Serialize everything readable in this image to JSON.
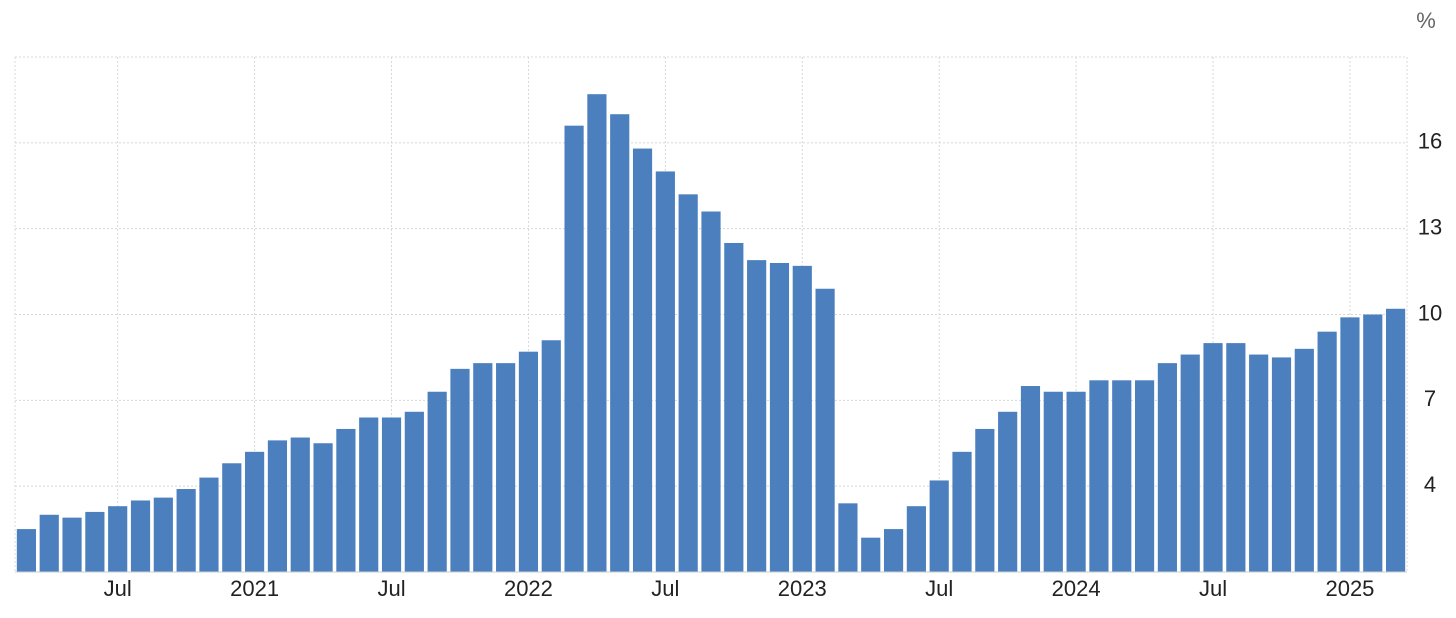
{
  "chart_data": {
    "type": "bar",
    "unit": "%",
    "categories": [
      null,
      null,
      null,
      null,
      "Jul",
      null,
      null,
      null,
      null,
      null,
      "2021",
      null,
      null,
      null,
      null,
      null,
      "Jul",
      null,
      null,
      null,
      null,
      null,
      "2022",
      null,
      null,
      null,
      null,
      null,
      "Jul",
      null,
      null,
      null,
      null,
      null,
      "2023",
      null,
      null,
      null,
      null,
      null,
      "Jul",
      null,
      null,
      null,
      null,
      null,
      "2024",
      null,
      null,
      null,
      null,
      null,
      "Jul",
      null,
      null,
      null,
      null,
      null,
      "2025",
      null,
      null
    ],
    "values": [
      2.5,
      3.0,
      2.9,
      3.1,
      3.3,
      3.5,
      3.6,
      3.9,
      4.3,
      4.8,
      5.2,
      5.6,
      5.7,
      5.5,
      6.0,
      6.4,
      6.4,
      6.6,
      7.3,
      8.1,
      8.3,
      8.3,
      8.7,
      9.1,
      16.6,
      17.7,
      17.0,
      15.8,
      15.0,
      14.2,
      13.6,
      12.5,
      11.9,
      11.8,
      11.7,
      10.9,
      3.4,
      2.2,
      2.5,
      3.3,
      4.2,
      5.2,
      6.0,
      6.6,
      7.5,
      7.3,
      7.3,
      7.7,
      7.7,
      7.7,
      8.3,
      8.6,
      9.0,
      9.0,
      8.6,
      8.5,
      8.8,
      9.4,
      9.9,
      10.0,
      10.2
    ],
    "color": "#4b7fbe",
    "ylim": [
      1,
      19
    ],
    "yticks": [
      4,
      7,
      10,
      13,
      16
    ],
    "grid": true
  }
}
